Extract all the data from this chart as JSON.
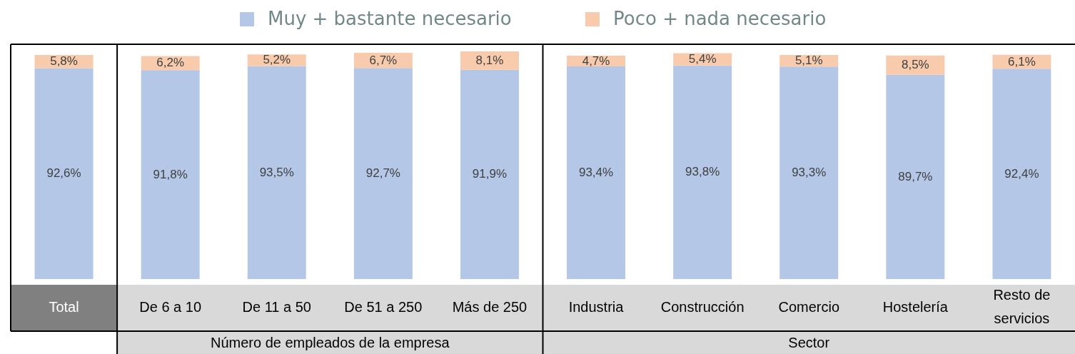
{
  "chart_data": {
    "type": "bar",
    "stacked": true,
    "legend": "top",
    "categories": [
      "Total",
      "De 6 a 10",
      "De 11 a 50",
      "De 51 a 250",
      "Más de 250",
      "Industria",
      "Construcción",
      "Comercio",
      "Hostelería",
      "Resto de servicios"
    ],
    "series": [
      {
        "name": "Muy + bastante necesario",
        "color": "#b4c7e7",
        "values": [
          92.6,
          91.8,
          93.5,
          92.7,
          91.9,
          93.4,
          93.8,
          93.3,
          89.7,
          92.4
        ],
        "value_labels": [
          "92,6%",
          "91,8%",
          "93,5%",
          "92,7%",
          "91,9%",
          "93,4%",
          "93,8%",
          "93,3%",
          "89,7%",
          "92,4%"
        ]
      },
      {
        "name": "Poco + nada necesario",
        "color": "#f8cbad",
        "values": [
          5.8,
          6.2,
          5.2,
          6.7,
          8.1,
          4.7,
          5.4,
          5.1,
          8.5,
          6.1
        ],
        "value_labels": [
          "5,8%",
          "6,2%",
          "5,2%",
          "6,7%",
          "8,1%",
          "4,7%",
          "5,4%",
          "5,1%",
          "8,5%",
          "6,1%"
        ]
      }
    ],
    "annotations": [
      "Número de empleados de la empresa",
      "Sector"
    ]
  }
}
